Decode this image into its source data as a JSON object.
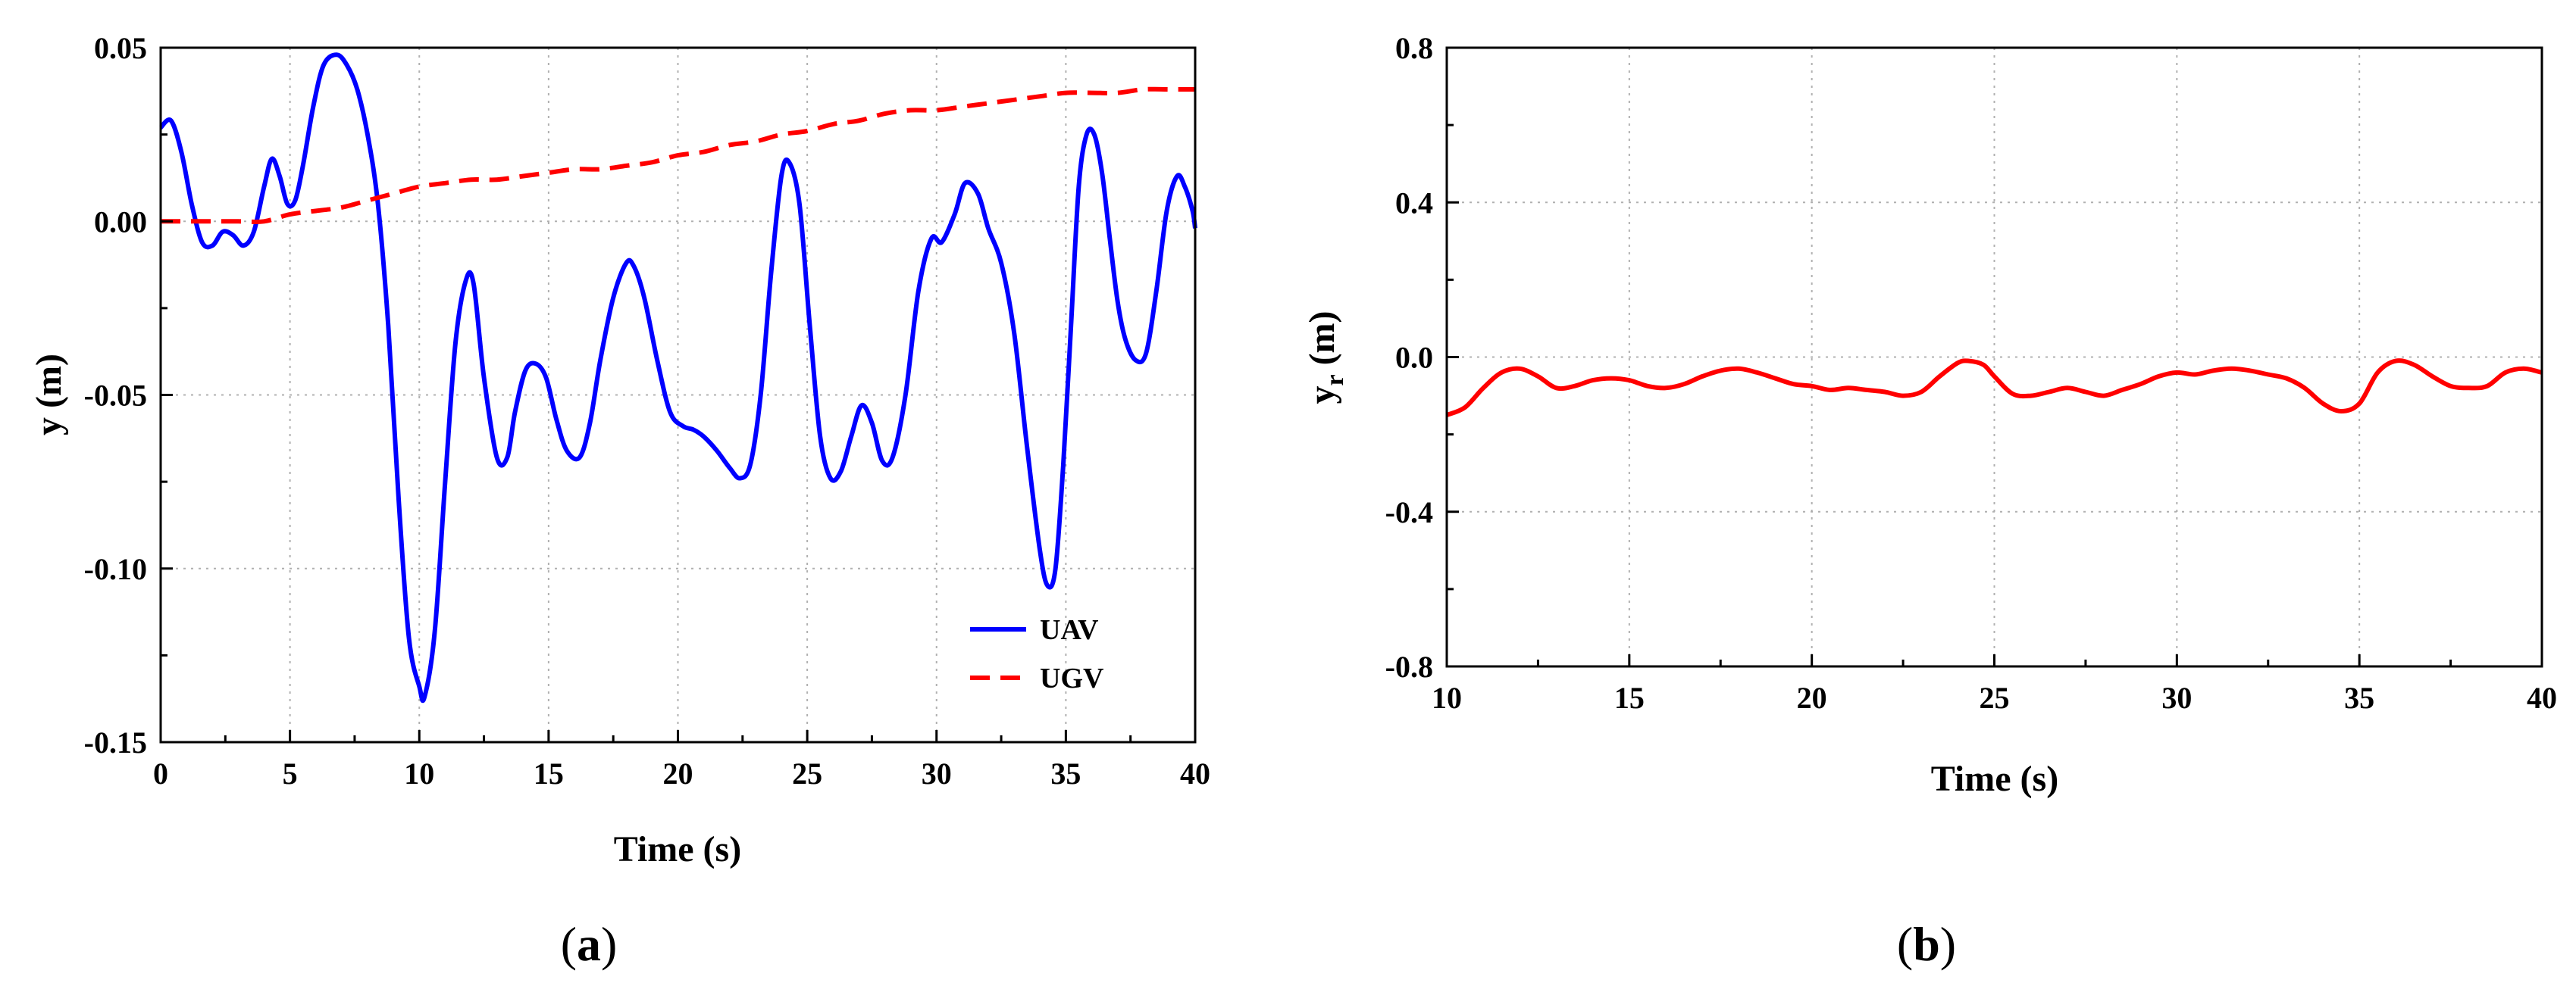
{
  "chart_data": [
    {
      "type": "line",
      "caption_letter": "a",
      "xlabel": "Time (s)",
      "ylabel": "y (m)",
      "xlim": [
        0,
        40
      ],
      "ylim": [
        -0.15,
        0.05
      ],
      "xticks": [
        0,
        5,
        10,
        15,
        20,
        25,
        30,
        35,
        40
      ],
      "xtick_labels": [
        "0",
        "5",
        "10",
        "15",
        "20",
        "25",
        "30",
        "35",
        "40"
      ],
      "yticks": [
        -0.15,
        -0.1,
        -0.05,
        0.0,
        0.05
      ],
      "ytick_labels": [
        "-0.15",
        "-0.10",
        "-0.05",
        "0.00",
        "0.05"
      ],
      "grid": true,
      "legend_position": "bottom-right",
      "series": [
        {
          "name": "UAV",
          "color": "#0000ff",
          "dash": "solid",
          "x": [
            0,
            0.4,
            0.8,
            1.2,
            1.6,
            2.0,
            2.4,
            2.8,
            3.2,
            3.6,
            4.0,
            4.3,
            4.6,
            4.9,
            5.2,
            5.5,
            5.9,
            6.3,
            6.8,
            7.2,
            7.6,
            8.0,
            8.4,
            8.8,
            9.2,
            9.6,
            10.0,
            10.2,
            10.6,
            11.0,
            11.4,
            11.8,
            12.1,
            12.5,
            13.0,
            13.4,
            13.7,
            14.1,
            14.5,
            14.9,
            15.3,
            15.7,
            16.2,
            16.6,
            17.0,
            17.5,
            18.0,
            18.3,
            18.7,
            19.2,
            19.7,
            20.2,
            20.6,
            21.0,
            21.5,
            22.0,
            22.4,
            22.8,
            23.2,
            23.6,
            24.0,
            24.3,
            24.7,
            25.1,
            25.5,
            25.9,
            26.3,
            26.7,
            27.1,
            27.5,
            27.9,
            28.3,
            28.8,
            29.3,
            29.8,
            30.2,
            30.7,
            31.1,
            31.6,
            32.0,
            32.5,
            33.0,
            33.5,
            34.0,
            34.3,
            34.6,
            34.9,
            35.2,
            35.5,
            35.8,
            36.1,
            36.4,
            36.7,
            37.0,
            37.3,
            37.7,
            38.1,
            38.5,
            38.9,
            39.3,
            39.6,
            39.9,
            40.0
          ],
          "y": [
            0.027,
            0.029,
            0.02,
            0.005,
            -0.006,
            -0.007,
            -0.003,
            -0.004,
            -0.007,
            -0.003,
            0.01,
            0.018,
            0.013,
            0.005,
            0.006,
            0.016,
            0.033,
            0.045,
            0.048,
            0.045,
            0.038,
            0.025,
            0.005,
            -0.03,
            -0.08,
            -0.12,
            -0.134,
            -0.137,
            -0.118,
            -0.075,
            -0.035,
            -0.017,
            -0.018,
            -0.045,
            -0.068,
            -0.068,
            -0.055,
            -0.043,
            -0.041,
            -0.045,
            -0.057,
            -0.066,
            -0.068,
            -0.058,
            -0.04,
            -0.022,
            -0.012,
            -0.013,
            -0.022,
            -0.04,
            -0.055,
            -0.059,
            -0.06,
            -0.062,
            -0.066,
            -0.071,
            -0.074,
            -0.07,
            -0.05,
            -0.015,
            0.013,
            0.017,
            0.005,
            -0.03,
            -0.062,
            -0.074,
            -0.072,
            -0.062,
            -0.053,
            -0.058,
            -0.069,
            -0.068,
            -0.05,
            -0.02,
            -0.005,
            -0.006,
            0.002,
            0.011,
            0.008,
            -0.002,
            -0.012,
            -0.032,
            -0.065,
            -0.095,
            -0.105,
            -0.1,
            -0.07,
            -0.03,
            0.01,
            0.025,
            0.025,
            0.014,
            -0.005,
            -0.023,
            -0.034,
            -0.04,
            -0.038,
            -0.02,
            0.003,
            0.013,
            0.01,
            0.003,
            -0.002
          ]
        },
        {
          "name": "UGV",
          "color": "#ff0000",
          "dash": "dashed",
          "x": [
            0,
            1,
            2,
            3,
            4,
            5,
            6,
            7,
            8,
            9,
            10,
            11,
            12,
            13,
            14,
            15,
            16,
            17,
            18,
            19,
            20,
            21,
            22,
            23,
            24,
            25,
            26,
            27,
            28,
            29,
            30,
            31,
            32,
            33,
            34,
            35,
            36,
            37,
            38,
            39,
            40
          ],
          "y": [
            0.0,
            0.0,
            0.0,
            0.0,
            0.0,
            0.002,
            0.003,
            0.004,
            0.006,
            0.008,
            0.01,
            0.011,
            0.012,
            0.012,
            0.013,
            0.014,
            0.015,
            0.015,
            0.016,
            0.017,
            0.019,
            0.02,
            0.022,
            0.023,
            0.025,
            0.026,
            0.028,
            0.029,
            0.031,
            0.032,
            0.032,
            0.033,
            0.034,
            0.035,
            0.036,
            0.037,
            0.037,
            0.037,
            0.038,
            0.038,
            0.038
          ]
        }
      ]
    },
    {
      "type": "line",
      "caption_letter": "b",
      "xlabel": "Time (s)",
      "ylabel_main": "y",
      "ylabel_sub": "r",
      "ylabel_unit": " (m)",
      "xlim": [
        10,
        40
      ],
      "ylim": [
        -0.8,
        0.8
      ],
      "xticks": [
        10,
        15,
        20,
        25,
        30,
        35,
        40
      ],
      "xtick_labels": [
        "10",
        "15",
        "20",
        "25",
        "30",
        "35",
        "40"
      ],
      "yticks": [
        -0.8,
        -0.4,
        0.0,
        0.4,
        0.8
      ],
      "ytick_labels": [
        "-0.8",
        "-0.4",
        "0.0",
        "0.4",
        "0.8"
      ],
      "grid": true,
      "series": [
        {
          "name": "yr",
          "color": "#ff0000",
          "dash": "solid",
          "x": [
            10,
            10.5,
            11,
            11.5,
            12,
            12.5,
            13,
            13.5,
            14,
            14.5,
            15,
            15.5,
            16,
            16.5,
            17,
            17.5,
            18,
            18.5,
            19,
            19.5,
            20,
            20.5,
            21,
            21.5,
            22,
            22.5,
            23,
            23.5,
            24,
            24.3,
            24.7,
            25,
            25.5,
            26,
            26.5,
            27,
            27.5,
            28,
            28.5,
            29,
            29.5,
            30,
            30.5,
            31,
            31.5,
            32,
            32.5,
            33,
            33.5,
            34,
            34.5,
            35,
            35.5,
            36,
            36.5,
            37,
            37.5,
            38,
            38.5,
            39,
            39.5,
            40
          ],
          "y": [
            -0.15,
            -0.13,
            -0.08,
            -0.04,
            -0.03,
            -0.05,
            -0.08,
            -0.075,
            -0.06,
            -0.055,
            -0.06,
            -0.075,
            -0.08,
            -0.07,
            -0.05,
            -0.035,
            -0.03,
            -0.04,
            -0.055,
            -0.07,
            -0.075,
            -0.085,
            -0.08,
            -0.085,
            -0.09,
            -0.1,
            -0.09,
            -0.05,
            -0.015,
            -0.01,
            -0.02,
            -0.05,
            -0.095,
            -0.1,
            -0.09,
            -0.08,
            -0.09,
            -0.1,
            -0.085,
            -0.07,
            -0.05,
            -0.04,
            -0.045,
            -0.035,
            -0.03,
            -0.035,
            -0.045,
            -0.055,
            -0.08,
            -0.12,
            -0.14,
            -0.12,
            -0.04,
            -0.01,
            -0.02,
            -0.05,
            -0.075,
            -0.08,
            -0.075,
            -0.04,
            -0.03,
            -0.04
          ]
        }
      ]
    }
  ]
}
